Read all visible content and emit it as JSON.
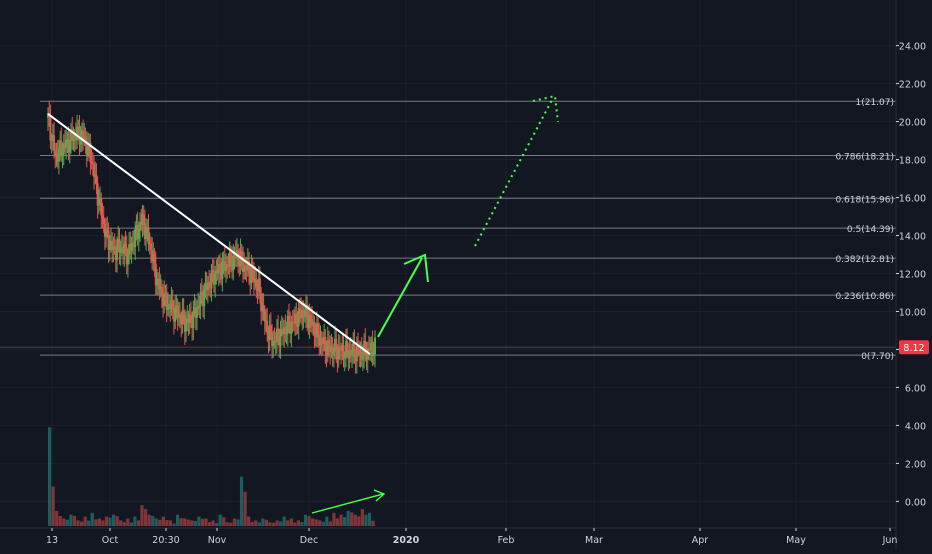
{
  "theme": {
    "background": "#131722",
    "grid": "#2a2e39",
    "fib_line": "#787b86",
    "text": "#d1d4dc",
    "up": "#26a69a",
    "bull_candle": "#4caf50",
    "down": "#ef5350",
    "trend_line": "#ffffff",
    "projection": "#4cff4c",
    "price_badge": "#f23645"
  },
  "chart_data": {
    "type": "candlestick",
    "title": "",
    "price_axis": {
      "range": [
        -1.4,
        26.4
      ],
      "ticks": [
        0.0,
        2.0,
        4.0,
        6.0,
        8.0,
        10.0,
        12.0,
        14.0,
        16.0,
        18.0,
        20.0,
        22.0,
        24.0
      ],
      "tick_labels": [
        "0.00",
        "2.00",
        "4.00",
        "6.00",
        "8.00",
        "10.00",
        "12.00",
        "14.00",
        "16.00",
        "18.00",
        "20.00",
        "22.00",
        "24.00"
      ]
    },
    "time_axis": {
      "labels": [
        "13",
        "Oct",
        "20:30",
        "Nov",
        "Dec",
        "2020",
        "Feb",
        "Mar",
        "Apr",
        "May",
        "Jun"
      ],
      "bold_labels": [
        "2020"
      ]
    },
    "last_price": {
      "value": 8.12,
      "label": "8.12"
    },
    "fibonacci": [
      {
        "level": "1",
        "price": 21.07,
        "label": "1(21.07)"
      },
      {
        "level": "0.786",
        "price": 18.21,
        "label": "0.786(18.21)"
      },
      {
        "level": "0.618",
        "price": 15.96,
        "label": "0.618(15.96)"
      },
      {
        "level": "0.5",
        "price": 14.39,
        "label": "0.5(14.39)"
      },
      {
        "level": "0.382",
        "price": 12.81,
        "label": "0.382(12.81)"
      },
      {
        "level": "0.236",
        "price": 10.86,
        "label": "0.236(10.86)"
      },
      {
        "level": "0",
        "price": 7.7,
        "label": "0(7.70)"
      }
    ],
    "price_path": [
      [
        0,
        20.2
      ],
      [
        1,
        18.2
      ],
      [
        2,
        18.6
      ],
      [
        3,
        19.0
      ],
      [
        4,
        19.4
      ],
      [
        5,
        19.1
      ],
      [
        6,
        18.0
      ],
      [
        7,
        15.8
      ],
      [
        8,
        14.0
      ],
      [
        9,
        13.2
      ],
      [
        10,
        13.4
      ],
      [
        11,
        13.0
      ],
      [
        12,
        14.0
      ],
      [
        13,
        14.8
      ],
      [
        14,
        13.6
      ],
      [
        15,
        11.6
      ],
      [
        16,
        10.6
      ],
      [
        17,
        10.2
      ],
      [
        18,
        9.8
      ],
      [
        19,
        9.4
      ],
      [
        20,
        9.7
      ],
      [
        21,
        10.6
      ],
      [
        22,
        11.4
      ],
      [
        23,
        12.0
      ],
      [
        24,
        12.3
      ],
      [
        25,
        12.6
      ],
      [
        26,
        13.0
      ],
      [
        27,
        12.4
      ],
      [
        28,
        12.0
      ],
      [
        29,
        11.2
      ],
      [
        30,
        9.2
      ],
      [
        31,
        8.4
      ],
      [
        32,
        8.8
      ],
      [
        33,
        9.2
      ],
      [
        34,
        9.5
      ],
      [
        35,
        10.0
      ],
      [
        36,
        9.6
      ],
      [
        37,
        8.8
      ],
      [
        38,
        8.2
      ],
      [
        39,
        8.0
      ],
      [
        40,
        7.95
      ],
      [
        41,
        7.9
      ],
      [
        42,
        7.85
      ],
      [
        43,
        7.8
      ],
      [
        44,
        7.9
      ],
      [
        45,
        8.12
      ]
    ],
    "volume_series": [
      5.2,
      0.8,
      0.4,
      0.6,
      0.3,
      0.5,
      0.7,
      0.4,
      0.5,
      0.6,
      0.3,
      0.4,
      0.5,
      1.1,
      0.6,
      0.4,
      0.5,
      0.3,
      0.6,
      0.4,
      0.3,
      0.5,
      0.4,
      0.3,
      0.6,
      0.2,
      0.4,
      2.6,
      0.5,
      0.3,
      0.4,
      0.2,
      0.3,
      0.5,
      0.4,
      0.3,
      0.6,
      0.4,
      0.3,
      0.5,
      0.7,
      0.6,
      0.8,
      0.6,
      0.9,
      0.7
    ]
  }
}
